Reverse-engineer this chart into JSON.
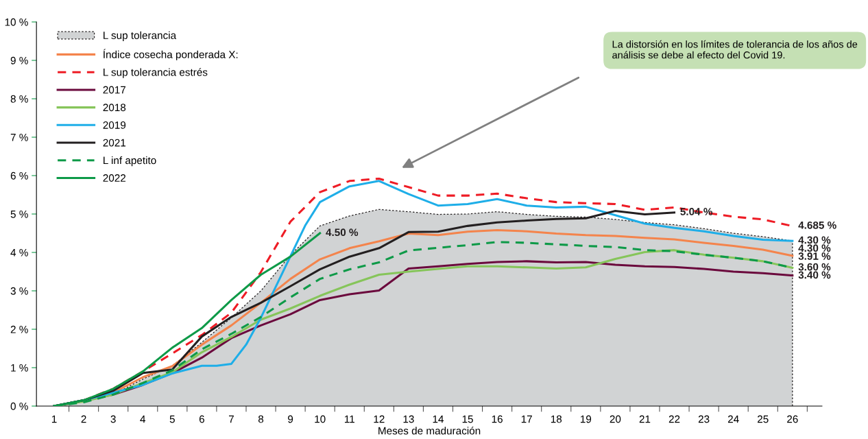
{
  "chart_data": {
    "type": "line",
    "xlabel": "Meses de maduración",
    "x": [
      1,
      2,
      3,
      4,
      5,
      6,
      7,
      8,
      9,
      10,
      11,
      12,
      13,
      14,
      15,
      16,
      17,
      18,
      19,
      20,
      21,
      22,
      23,
      24,
      25,
      26
    ],
    "series": [
      {
        "name": "L sup tolerancia",
        "type": "area",
        "color": "#d1d3d4",
        "line_style": "dotted",
        "values": [
          0,
          0.12,
          0.3,
          0.7,
          1.05,
          1.66,
          2.3,
          3.0,
          3.93,
          4.69,
          4.95,
          5.12,
          5.06,
          4.99,
          5.0,
          5.06,
          4.99,
          4.94,
          4.92,
          4.86,
          4.78,
          4.72,
          4.62,
          4.5,
          4.41,
          4.3
        ]
      },
      {
        "name": "Índice cosecha ponderada X:",
        "color": "#f4844c",
        "values": [
          0,
          0.15,
          0.35,
          0.75,
          1.04,
          1.6,
          2.1,
          2.69,
          3.31,
          3.82,
          4.11,
          4.29,
          4.49,
          4.45,
          4.54,
          4.58,
          4.55,
          4.49,
          4.45,
          4.43,
          4.38,
          4.34,
          4.25,
          4.17,
          4.07,
          3.91
        ]
      },
      {
        "name": "L sup tolerancia estrés",
        "color": "#ee1c25",
        "line_style": "dashed",
        "values": [
          0,
          0.15,
          0.45,
          0.9,
          1.37,
          1.85,
          2.43,
          3.49,
          4.8,
          5.57,
          5.86,
          5.92,
          5.7,
          5.48,
          5.48,
          5.53,
          5.41,
          5.31,
          5.28,
          5.26,
          5.11,
          5.17,
          5.04,
          4.93,
          4.86,
          4.685
        ]
      },
      {
        "name": "2017",
        "color": "#6b0a3d",
        "values": [
          0,
          0.15,
          0.3,
          0.55,
          0.86,
          1.26,
          1.77,
          2.1,
          2.39,
          2.76,
          2.91,
          3.01,
          3.58,
          3.64,
          3.7,
          3.75,
          3.77,
          3.74,
          3.75,
          3.68,
          3.64,
          3.62,
          3.57,
          3.5,
          3.46,
          3.4
        ]
      },
      {
        "name": "2018",
        "color": "#86c55a",
        "values": [
          0,
          0.12,
          0.3,
          0.6,
          0.88,
          1.4,
          1.8,
          2.25,
          2.54,
          2.87,
          3.16,
          3.42,
          3.5,
          3.57,
          3.64,
          3.64,
          3.61,
          3.58,
          3.61,
          3.83,
          4.01,
          4.06,
          3.94,
          3.86,
          3.77,
          3.6
        ]
      },
      {
        "name": "2019",
        "color": "#1eaee8",
        "x": [
          1,
          2,
          3,
          4,
          5,
          6,
          6.5,
          7,
          7.5,
          8,
          8.5,
          9,
          9.5,
          10,
          11,
          12,
          13,
          14,
          15,
          16,
          17,
          18,
          19,
          20,
          21,
          22,
          23,
          24,
          25,
          26
        ],
        "values": [
          0,
          0.15,
          0.35,
          0.55,
          0.85,
          1.05,
          1.05,
          1.1,
          1.6,
          2.3,
          3.1,
          3.9,
          4.7,
          5.31,
          5.72,
          5.86,
          5.52,
          5.22,
          5.26,
          5.39,
          5.22,
          5.17,
          5.19,
          4.97,
          4.75,
          4.64,
          4.55,
          4.43,
          4.33,
          4.3
        ]
      },
      {
        "name": "2021",
        "color": "#231f20",
        "values": [
          0,
          0.15,
          0.4,
          0.86,
          0.95,
          1.81,
          2.32,
          2.69,
          3.12,
          3.56,
          3.89,
          4.11,
          4.53,
          4.54,
          4.69,
          4.78,
          4.83,
          4.87,
          4.89,
          5.08,
          4.99,
          5.04,
          null,
          null,
          null,
          null
        ]
      },
      {
        "name": "L inf apetito",
        "color": "#0e9a48",
        "line_style": "dashed",
        "values": [
          0,
          0.1,
          0.3,
          0.6,
          0.93,
          1.48,
          1.88,
          2.32,
          2.83,
          3.31,
          3.56,
          3.74,
          4.05,
          4.12,
          4.19,
          4.27,
          4.25,
          4.21,
          4.17,
          4.14,
          4.06,
          4.03,
          3.94,
          3.86,
          3.77,
          3.6
        ]
      },
      {
        "name": "2022",
        "color": "#0e9a48",
        "values": [
          0,
          0.15,
          0.45,
          0.9,
          1.52,
          2.03,
          2.76,
          3.42,
          3.89,
          4.5,
          null,
          null,
          null,
          null,
          null,
          null,
          null,
          null,
          null,
          null,
          null,
          null,
          null,
          null,
          null,
          null
        ]
      }
    ],
    "annotations": [
      {
        "text": "4.50 %",
        "x": 10,
        "y": 4.5
      },
      {
        "text": "5.04 %",
        "x": 22,
        "y": 5.04
      },
      {
        "text": "4.685 %",
        "x": 26,
        "y": 4.685
      },
      {
        "text": "4.30 %",
        "x": 26,
        "y": 4.3
      },
      {
        "text": "4.30 %",
        "x": 26,
        "y": 4.3
      },
      {
        "text": "3.91 %",
        "x": 26,
        "y": 3.91
      },
      {
        "text": "3.60 %",
        "x": 26,
        "y": 3.6
      },
      {
        "text": "3.40 %",
        "x": 26,
        "y": 3.4
      },
      "La distorsión en los límites de tolerancia de los años de análisis se debe al efecto del Covid 19."
    ],
    "xlim": [
      0.4,
      27
    ],
    "ylim": [
      0,
      10
    ],
    "xticks": [
      {
        "value": 1,
        "label": "1"
      },
      {
        "value": 2,
        "label": "2"
      },
      {
        "value": 3,
        "label": "3"
      },
      {
        "value": 4,
        "label": "4"
      },
      {
        "value": 5,
        "label": "5"
      },
      {
        "value": 6,
        "label": "6"
      },
      {
        "value": 7,
        "label": "7"
      },
      {
        "value": 8,
        "label": "8"
      },
      {
        "value": 9,
        "label": "9"
      },
      {
        "value": 10,
        "label": "10"
      },
      {
        "value": 11,
        "label": "11"
      },
      {
        "value": 12,
        "label": "12"
      },
      {
        "value": 13,
        "label": "13"
      },
      {
        "value": 14,
        "label": "14"
      },
      {
        "value": 15,
        "label": "15"
      },
      {
        "value": 16,
        "label": "16"
      },
      {
        "value": 17,
        "label": "17"
      },
      {
        "value": 18,
        "label": "18"
      },
      {
        "value": 19,
        "label": "19"
      },
      {
        "value": 20,
        "label": "20"
      },
      {
        "value": 21,
        "label": "21"
      },
      {
        "value": 22,
        "label": "22"
      },
      {
        "value": 23,
        "label": "23"
      },
      {
        "value": 24,
        "label": "24"
      },
      {
        "value": 25,
        "label": "25"
      },
      {
        "value": 26,
        "label": "26"
      },
      {
        "value": 1.5,
        "label": null
      },
      {
        "value": 2.5,
        "label": null
      },
      {
        "value": 3.5,
        "label": null
      },
      {
        "value": 4.5,
        "label": null
      },
      {
        "value": 5.5,
        "label": null
      },
      {
        "value": 6.5,
        "label": null
      },
      {
        "value": 7.5,
        "label": null
      },
      {
        "value": 8.5,
        "label": null
      },
      {
        "value": 9.5,
        "label": null
      },
      {
        "value": 10.5,
        "label": null
      },
      {
        "value": 11.5,
        "label": null
      },
      {
        "value": 12.5,
        "label": null
      },
      {
        "value": 13.5,
        "label": null
      },
      {
        "value": 14.5,
        "label": null
      },
      {
        "value": 15.5,
        "label": null
      },
      {
        "value": 16.5,
        "label": null
      },
      {
        "value": 17.5,
        "label": null
      },
      {
        "value": 18.5,
        "label": null
      },
      {
        "value": 19.5,
        "label": null
      },
      {
        "value": 20.5,
        "label": null
      },
      {
        "value": 21.5,
        "label": null
      },
      {
        "value": 22.5,
        "label": null
      },
      {
        "value": 23.5,
        "label": null
      },
      {
        "value": 24.5,
        "label": null
      },
      {
        "value": 25.5,
        "label": null
      },
      {
        "value": 26.5,
        "label": null
      }
    ],
    "yticks": [
      {
        "value": 0,
        "label": "0 %"
      },
      {
        "value": 1,
        "label": "1 %"
      },
      {
        "value": 2,
        "label": "2 %"
      },
      {
        "value": 3,
        "label": "3 %"
      },
      {
        "value": 4,
        "label": "4 %"
      },
      {
        "value": 5,
        "label": "5 %"
      },
      {
        "value": 6,
        "label": "6 %"
      },
      {
        "value": 7,
        "label": "7 %"
      },
      {
        "value": 8,
        "label": "8 %"
      },
      {
        "value": 9,
        "label": "9 %"
      },
      {
        "value": 10,
        "label": "10 %"
      }
    ],
    "legend": "top left",
    "grid": false
  }
}
